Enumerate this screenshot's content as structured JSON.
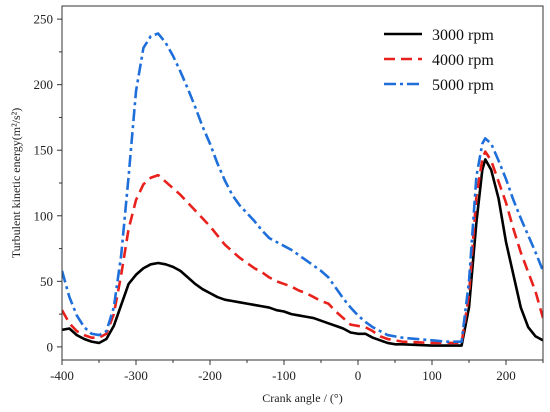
{
  "chart_data": {
    "type": "line",
    "title": "",
    "xlabel": "Crank angle / (°)",
    "ylabel": "Turbulent kinetic energy(m²/s²)",
    "xlim": [
      -400,
      250
    ],
    "ylim": [
      -10,
      260
    ],
    "xticks": [
      -400,
      -300,
      -200,
      -100,
      0,
      100,
      200
    ],
    "yticks": [
      0,
      50,
      100,
      150,
      200,
      250
    ],
    "grid": false,
    "legend_position": "top-right",
    "series": [
      {
        "name": "3000 rpm",
        "color": "#000000",
        "dash": "solid",
        "points": [
          [
            -400,
            13
          ],
          [
            -390,
            14
          ],
          [
            -380,
            9
          ],
          [
            -370,
            6
          ],
          [
            -360,
            4
          ],
          [
            -350,
            3
          ],
          [
            -340,
            6
          ],
          [
            -330,
            16
          ],
          [
            -320,
            32
          ],
          [
            -310,
            48
          ],
          [
            -300,
            55
          ],
          [
            -290,
            60
          ],
          [
            -280,
            63
          ],
          [
            -270,
            64
          ],
          [
            -260,
            63
          ],
          [
            -250,
            61
          ],
          [
            -240,
            58
          ],
          [
            -230,
            53
          ],
          [
            -220,
            48
          ],
          [
            -210,
            44
          ],
          [
            -200,
            41
          ],
          [
            -190,
            38
          ],
          [
            -180,
            36
          ],
          [
            -170,
            35
          ],
          [
            -160,
            34
          ],
          [
            -150,
            33
          ],
          [
            -140,
            32
          ],
          [
            -130,
            31
          ],
          [
            -120,
            30
          ],
          [
            -110,
            28
          ],
          [
            -100,
            27
          ],
          [
            -90,
            25
          ],
          [
            -80,
            24
          ],
          [
            -70,
            23
          ],
          [
            -60,
            22
          ],
          [
            -50,
            20
          ],
          [
            -40,
            18
          ],
          [
            -30,
            16
          ],
          [
            -20,
            14
          ],
          [
            -10,
            11
          ],
          [
            0,
            10
          ],
          [
            10,
            10
          ],
          [
            20,
            7
          ],
          [
            30,
            5
          ],
          [
            40,
            3
          ],
          [
            50,
            2
          ],
          [
            60,
            2
          ],
          [
            80,
            1.5
          ],
          [
            100,
            1
          ],
          [
            120,
            1
          ],
          [
            140,
            1
          ],
          [
            150,
            30
          ],
          [
            160,
            95
          ],
          [
            168,
            135
          ],
          [
            172,
            143
          ],
          [
            180,
            135
          ],
          [
            190,
            113
          ],
          [
            200,
            80
          ],
          [
            210,
            55
          ],
          [
            220,
            30
          ],
          [
            230,
            15
          ],
          [
            240,
            8
          ],
          [
            250,
            5
          ]
        ]
      },
      {
        "name": "4000 rpm",
        "color": "#e8211d",
        "dash": "dashed",
        "points": [
          [
            -400,
            28
          ],
          [
            -390,
            18
          ],
          [
            -380,
            12
          ],
          [
            -370,
            9
          ],
          [
            -360,
            7
          ],
          [
            -350,
            7
          ],
          [
            -340,
            10
          ],
          [
            -330,
            25
          ],
          [
            -320,
            55
          ],
          [
            -310,
            90
          ],
          [
            -300,
            112
          ],
          [
            -290,
            124
          ],
          [
            -280,
            129
          ],
          [
            -270,
            131
          ],
          [
            -260,
            126
          ],
          [
            -250,
            121
          ],
          [
            -240,
            116
          ],
          [
            -230,
            110
          ],
          [
            -220,
            104
          ],
          [
            -210,
            98
          ],
          [
            -200,
            92
          ],
          [
            -190,
            85
          ],
          [
            -180,
            78
          ],
          [
            -170,
            73
          ],
          [
            -160,
            68
          ],
          [
            -150,
            64
          ],
          [
            -140,
            60
          ],
          [
            -130,
            57
          ],
          [
            -120,
            53
          ],
          [
            -110,
            50
          ],
          [
            -100,
            48
          ],
          [
            -90,
            46
          ],
          [
            -80,
            43
          ],
          [
            -70,
            41
          ],
          [
            -60,
            38
          ],
          [
            -50,
            35
          ],
          [
            -40,
            33
          ],
          [
            -30,
            27
          ],
          [
            -20,
            22
          ],
          [
            -10,
            17
          ],
          [
            0,
            16
          ],
          [
            10,
            15
          ],
          [
            20,
            12
          ],
          [
            30,
            8
          ],
          [
            40,
            6
          ],
          [
            50,
            5
          ],
          [
            60,
            4
          ],
          [
            80,
            3.5
          ],
          [
            100,
            3
          ],
          [
            120,
            3
          ],
          [
            140,
            3
          ],
          [
            150,
            40
          ],
          [
            160,
            115
          ],
          [
            168,
            143
          ],
          [
            172,
            149
          ],
          [
            180,
            142
          ],
          [
            190,
            126
          ],
          [
            200,
            110
          ],
          [
            210,
            90
          ],
          [
            220,
            72
          ],
          [
            230,
            57
          ],
          [
            240,
            42
          ],
          [
            250,
            22
          ]
        ]
      },
      {
        "name": "5000 rpm",
        "color": "#1f6fdb",
        "dash": "dashdot",
        "points": [
          [
            -400,
            58
          ],
          [
            -390,
            38
          ],
          [
            -380,
            24
          ],
          [
            -370,
            15
          ],
          [
            -360,
            10
          ],
          [
            -350,
            9
          ],
          [
            -340,
            12
          ],
          [
            -330,
            30
          ],
          [
            -320,
            70
          ],
          [
            -310,
            130
          ],
          [
            -300,
            195
          ],
          [
            -290,
            228
          ],
          [
            -280,
            237
          ],
          [
            -270,
            239
          ],
          [
            -260,
            232
          ],
          [
            -250,
            222
          ],
          [
            -240,
            210
          ],
          [
            -230,
            197
          ],
          [
            -220,
            183
          ],
          [
            -210,
            168
          ],
          [
            -200,
            155
          ],
          [
            -190,
            140
          ],
          [
            -180,
            127
          ],
          [
            -170,
            116
          ],
          [
            -160,
            108
          ],
          [
            -150,
            102
          ],
          [
            -140,
            96
          ],
          [
            -130,
            89
          ],
          [
            -120,
            83
          ],
          [
            -110,
            80
          ],
          [
            -100,
            77
          ],
          [
            -90,
            74
          ],
          [
            -80,
            70
          ],
          [
            -70,
            66
          ],
          [
            -60,
            62
          ],
          [
            -50,
            58
          ],
          [
            -40,
            53
          ],
          [
            -30,
            45
          ],
          [
            -20,
            37
          ],
          [
            -10,
            30
          ],
          [
            0,
            24
          ],
          [
            10,
            19
          ],
          [
            20,
            15
          ],
          [
            30,
            12
          ],
          [
            40,
            9
          ],
          [
            50,
            8
          ],
          [
            60,
            7
          ],
          [
            80,
            6
          ],
          [
            100,
            5
          ],
          [
            120,
            4
          ],
          [
            140,
            4
          ],
          [
            150,
            50
          ],
          [
            160,
            130
          ],
          [
            168,
            155
          ],
          [
            172,
            159
          ],
          [
            180,
            155
          ],
          [
            190,
            142
          ],
          [
            200,
            128
          ],
          [
            210,
            112
          ],
          [
            220,
            98
          ],
          [
            230,
            85
          ],
          [
            240,
            72
          ],
          [
            250,
            58
          ]
        ]
      }
    ]
  }
}
